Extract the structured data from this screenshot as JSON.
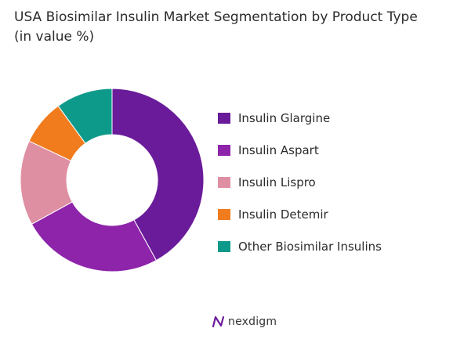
{
  "title_line1": "USA Biosimilar Insulin Market Segmentation by Product Type",
  "title_line2": "(in value %)",
  "chart_data": {
    "type": "pie",
    "donut": true,
    "categories": [
      "Insulin Glargine",
      "Insulin Aspart",
      "Insulin Lispro",
      "Insulin Detemir",
      "Other Biosimilar Insulins"
    ],
    "values": [
      42,
      25,
      15,
      8,
      10
    ],
    "colors": [
      "#6a1b9a",
      "#8e24aa",
      "#df8fa2",
      "#f17c1e",
      "#0e9a8a"
    ],
    "legend_position": "right"
  },
  "brand": {
    "name": "nexdigm",
    "logo_icon": "nexdigm-logo-icon",
    "logo_color": "#6a1b9a"
  }
}
